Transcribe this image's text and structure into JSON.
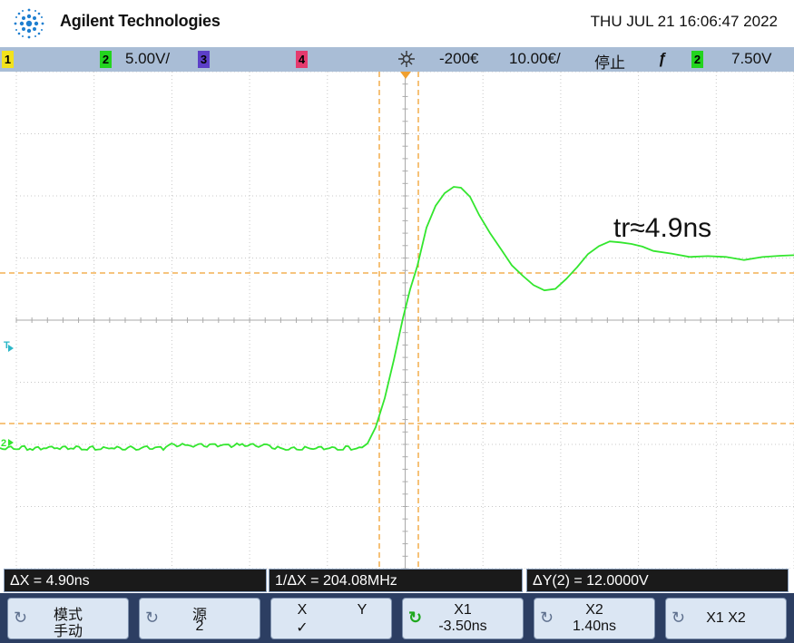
{
  "header": {
    "brand": "Agilent Technologies",
    "datetime": "THU JUL 21 16:06:47 2022"
  },
  "status": {
    "ch1_num": "1",
    "ch2_num": "2",
    "ch2_scale": "5.00V/",
    "ch3_num": "3",
    "ch4_num": "4",
    "trigger_icon": "sun-trigger-icon",
    "delay": "-200€",
    "timebase": "10.00€/",
    "run_state": "停止",
    "slope_icon": "rising-edge-icon",
    "trig_src": "2",
    "trig_level": "7.50V"
  },
  "colors": {
    "trace": "#33e62e",
    "cursor": "#f0a030",
    "grid": "#c8c8c8",
    "status_bg": "#a9bdd6"
  },
  "screen": {
    "annotation": "tr≈4.9ns",
    "t_marker": "T",
    "ch2_marker": "2"
  },
  "readouts": {
    "dx": "ΔX = 4.90ns",
    "inv_dx": "1/ΔX = 204.08MHz",
    "dy": "ΔY(2) = 12.0000V"
  },
  "softkeys": {
    "mode_l1": "模式",
    "mode_l2": "手动",
    "source_l1": "源",
    "source_l2": "2",
    "xy_x": "X",
    "xy_y": "Y",
    "xy_check": "✓",
    "x1_l1": "X1",
    "x1_l2": "-3.50ns",
    "x2_l1": "X2",
    "x2_l2": "1.40ns",
    "x1x2": "X1 X2"
  }
}
